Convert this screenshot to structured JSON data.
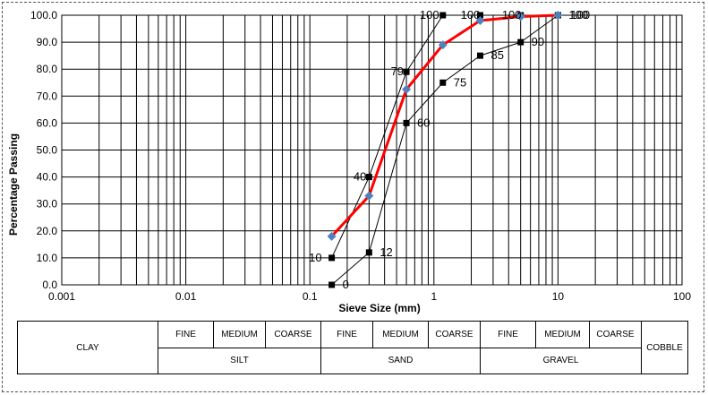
{
  "chart_data": {
    "type": "line",
    "title": "",
    "xlabel": "Sieve Size (mm)",
    "ylabel": "Percentage Passing",
    "xscale": "log",
    "xlim": [
      0.001,
      100
    ],
    "ylim": [
      0,
      100
    ],
    "x_tick_labels": [
      "0.001",
      "0.01",
      "0.1",
      "1",
      "10",
      "100"
    ],
    "y_tick_labels": [
      "0.0",
      "10.0",
      "20.0",
      "30.0",
      "40.0",
      "50.0",
      "60.0",
      "70.0",
      "80.0",
      "90.0",
      "100.0"
    ],
    "grid": true,
    "legend": "none",
    "series": [
      {
        "style": "black-line-square",
        "color": "#000000",
        "points": [
          {
            "x": 0.15,
            "y": 10,
            "label": "10"
          },
          {
            "x": 0.3,
            "y": 40,
            "label": "40"
          },
          {
            "x": 0.6,
            "y": 79,
            "label": "79"
          },
          {
            "x": 1.18,
            "y": 100,
            "label": "100"
          },
          {
            "x": 2.36,
            "y": 100,
            "label": "100"
          },
          {
            "x": 5,
            "y": 100,
            "label": "100"
          },
          {
            "x": 10,
            "y": 100,
            "label": "100"
          }
        ]
      },
      {
        "style": "black-line-square",
        "color": "#000000",
        "points": [
          {
            "x": 0.15,
            "y": 0,
            "label": "0"
          },
          {
            "x": 0.3,
            "y": 12,
            "label": "12"
          },
          {
            "x": 0.6,
            "y": 60,
            "label": "60"
          },
          {
            "x": 1.18,
            "y": 75,
            "label": "75"
          },
          {
            "x": 2.36,
            "y": 85,
            "label": "85"
          },
          {
            "x": 5,
            "y": 90,
            "label": "90"
          },
          {
            "x": 10,
            "y": 100,
            "label": "100"
          }
        ]
      },
      {
        "style": "red-line-diamond",
        "color": "#ff0000",
        "marker_color": "#4f81bd",
        "points": [
          {
            "x": 0.15,
            "y": 18
          },
          {
            "x": 0.3,
            "y": 33
          },
          {
            "x": 0.6,
            "y": 72.5
          },
          {
            "x": 1.18,
            "y": 89
          },
          {
            "x": 2.36,
            "y": 98
          },
          {
            "x": 5,
            "y": 99.5
          },
          {
            "x": 10,
            "y": 100
          }
        ]
      }
    ]
  },
  "classification_table": {
    "clay": "CLAY",
    "cobble": "COBBLE",
    "silt": {
      "name": "SILT",
      "fine": "FINE",
      "medium": "MEDIUM",
      "coarse": "COARSE"
    },
    "sand": {
      "name": "SAND",
      "fine": "FINE",
      "medium": "MEDIUM",
      "coarse": "COARSE"
    },
    "gravel": {
      "name": "GRAVEL",
      "fine": "FINE",
      "medium": "MEDIUM",
      "coarse": "COARSE"
    }
  }
}
